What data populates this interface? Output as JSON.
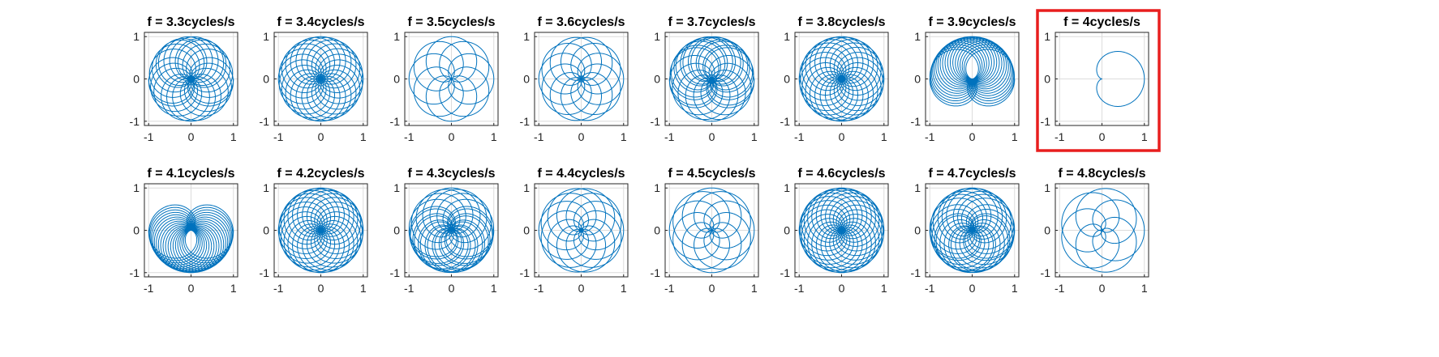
{
  "colors": {
    "trace": "#0072BD",
    "highlight": "#E81E1E"
  },
  "chart_data": {
    "type": "line",
    "description_of_curve": "x = cos(2*pi*t) + ... winding trace; each panel shows the signal wound around the unit circle at winding frequency f",
    "xlim": [
      -1.1,
      1.1
    ],
    "ylim": [
      -1.1,
      1.1
    ],
    "xticks": [
      -1,
      0,
      1
    ],
    "yticks": [
      -1,
      0,
      1
    ],
    "xtick_labels": [
      "-1",
      "0",
      "1"
    ],
    "ytick_labels": [
      "-1",
      "0",
      "1"
    ],
    "grid": true,
    "signal_frequency": 4,
    "highlighted_panel": 7,
    "panels": [
      {
        "title": "f = 3.3cycles/s",
        "f": 3.3
      },
      {
        "title": "f = 3.4cycles/s",
        "f": 3.4
      },
      {
        "title": "f = 3.5cycles/s",
        "f": 3.5
      },
      {
        "title": "f = 3.6cycles/s",
        "f": 3.6
      },
      {
        "title": "f = 3.7cycles/s",
        "f": 3.7
      },
      {
        "title": "f = 3.8cycles/s",
        "f": 3.8
      },
      {
        "title": "f = 3.9cycles/s",
        "f": 3.9
      },
      {
        "title": "f = 4cycles/s",
        "f": 4.0
      },
      {
        "title": "f = 4.1cycles/s",
        "f": 4.1
      },
      {
        "title": "f = 4.2cycles/s",
        "f": 4.2
      },
      {
        "title": "f = 4.3cycles/s",
        "f": 4.3
      },
      {
        "title": "f = 4.4cycles/s",
        "f": 4.4
      },
      {
        "title": "f = 4.5cycles/s",
        "f": 4.5
      },
      {
        "title": "f = 4.6cycles/s",
        "f": 4.6
      },
      {
        "title": "f = 4.7cycles/s",
        "f": 4.7
      },
      {
        "title": "f = 4.8cycles/s",
        "f": 4.8
      }
    ]
  }
}
